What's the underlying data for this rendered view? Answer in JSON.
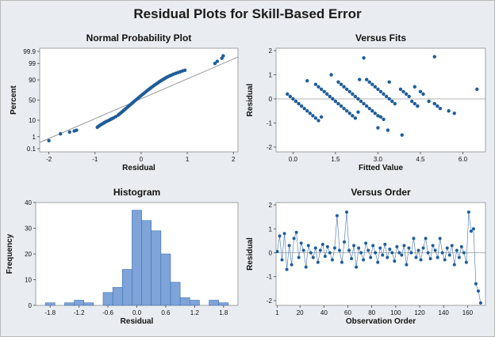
{
  "title": "Residual Plots for Skill-Based Error",
  "colors": {
    "marker": "#1f5d99",
    "bar": "#7ea4d9",
    "bar_edge": "#3f6fae",
    "ref_line": "#9a9a9a",
    "panel_bg": "#ffffff"
  },
  "chart_data": [
    {
      "type": "scatter",
      "title": "Normal Probability Plot",
      "xlabel": "Residual",
      "ylabel": "Percent",
      "xlim": [
        -2.2,
        2.1
      ],
      "xticks": [
        -2,
        -1,
        0,
        1,
        2
      ],
      "y_scale": "normal-probability",
      "yticks": [
        0.1,
        1,
        10,
        50,
        90,
        99,
        99.9
      ],
      "yticklabels": [
        "0.1",
        "1",
        "10",
        "50",
        "90",
        "99",
        "99.9"
      ],
      "reference_line": true,
      "x": [
        -2.0,
        -1.75,
        -1.55,
        -1.45,
        -1.4,
        -0.95,
        -0.93,
        -0.9,
        -0.88,
        -0.85,
        -0.82,
        -0.8,
        -0.77,
        -0.74,
        -0.7,
        -0.67,
        -0.64,
        -0.6,
        -0.55,
        -0.5,
        -0.47,
        -0.44,
        -0.41,
        -0.38,
        -0.35,
        -0.32,
        -0.29,
        -0.26,
        -0.23,
        -0.2,
        -0.17,
        -0.14,
        -0.11,
        -0.08,
        -0.05,
        -0.02,
        0.01,
        0.04,
        0.07,
        0.1,
        0.13,
        0.16,
        0.19,
        0.22,
        0.25,
        0.28,
        0.31,
        0.34,
        0.37,
        0.4,
        0.43,
        0.46,
        0.49,
        0.52,
        0.55,
        0.58,
        0.62,
        0.66,
        0.7,
        0.75,
        0.8,
        0.85,
        0.9,
        0.95,
        1.6,
        1.65,
        1.75,
        1.78
      ],
      "y": [
        0.5,
        1.6,
        2.1,
        2.5,
        2.8,
        4.2,
        4.7,
        5.2,
        5.8,
        6.4,
        7.0,
        7.6,
        8.3,
        9.0,
        9.8,
        10.7,
        11.7,
        12.8,
        14.6,
        16.9,
        18.8,
        20.8,
        23.0,
        25.3,
        27.8,
        30.4,
        33.1,
        35.9,
        38.8,
        41.7,
        44.7,
        47.6,
        50.6,
        53.5,
        56.4,
        59.3,
        62.1,
        64.8,
        67.4,
        69.9,
        72.3,
        74.6,
        76.7,
        78.7,
        80.6,
        82.3,
        83.9,
        85.3,
        86.6,
        87.9,
        89.0,
        90.0,
        90.9,
        91.7,
        92.5,
        93.1,
        93.8,
        94.4,
        95.0,
        95.5,
        96.0,
        96.4,
        96.8,
        97.1,
        99.0,
        99.3,
        99.6,
        99.75
      ]
    },
    {
      "type": "scatter",
      "title": "Versus Fits",
      "xlabel": "Fitted Value",
      "ylabel": "Residual",
      "xlim": [
        -0.6,
        6.8
      ],
      "ylim": [
        -2.2,
        2.1
      ],
      "xticks": [
        0.0,
        1.5,
        3.0,
        4.5,
        6.0
      ],
      "xticklabels": [
        "0.0",
        "1.5",
        "3.0",
        "4.5",
        "6.0"
      ],
      "yticks": [
        -2,
        -1,
        0,
        1,
        2
      ],
      "reference_line_y": 0,
      "x": [
        -0.2,
        -0.1,
        0.0,
        0.1,
        0.2,
        0.3,
        0.4,
        0.5,
        0.6,
        0.7,
        0.8,
        0.9,
        1.0,
        0.8,
        0.9,
        1.0,
        1.1,
        1.2,
        1.3,
        1.4,
        1.5,
        1.6,
        1.7,
        1.8,
        1.9,
        2.0,
        2.1,
        2.2,
        2.3,
        0.5,
        1.6,
        1.7,
        1.8,
        1.9,
        2.0,
        2.1,
        2.2,
        2.3,
        2.4,
        2.5,
        2.6,
        2.7,
        2.8,
        2.9,
        3.0,
        3.1,
        3.2,
        2.6,
        2.7,
        2.8,
        2.9,
        3.0,
        3.1,
        3.2,
        3.3,
        3.4,
        3.5,
        3.6,
        3.8,
        3.9,
        4.0,
        4.1,
        4.2,
        4.3,
        4.4,
        4.5,
        4.6,
        4.8,
        5.0,
        5.1,
        5.2,
        5.5,
        5.7,
        6.5,
        1.35,
        2.35,
        2.5,
        3.4,
        4.3,
        3.85,
        5.0,
        3.0,
        3.35
      ],
      "y": [
        0.2,
        0.1,
        0.0,
        -0.1,
        -0.2,
        -0.3,
        -0.4,
        -0.5,
        -0.6,
        -0.7,
        -0.8,
        -0.9,
        -0.75,
        0.6,
        0.5,
        0.4,
        0.3,
        0.2,
        0.1,
        0.0,
        -0.1,
        -0.2,
        -0.3,
        -0.4,
        -0.5,
        -0.6,
        -0.7,
        -0.8,
        -0.55,
        0.75,
        0.7,
        0.6,
        0.5,
        0.4,
        0.3,
        0.2,
        0.1,
        0.0,
        -0.1,
        -0.2,
        -0.3,
        -0.4,
        -0.5,
        -0.6,
        -0.7,
        -0.75,
        -0.85,
        0.8,
        0.7,
        0.6,
        0.5,
        0.4,
        0.3,
        0.2,
        0.1,
        0.0,
        -0.1,
        -0.2,
        0.4,
        0.3,
        0.2,
        0.1,
        -0.1,
        -0.2,
        -0.3,
        0.3,
        0.2,
        -0.1,
        -0.2,
        -0.3,
        -0.4,
        -0.5,
        -0.6,
        0.4,
        1.0,
        0.8,
        1.7,
        0.7,
        0.5,
        -1.5,
        1.75,
        -1.2,
        -1.3
      ]
    },
    {
      "type": "bar",
      "title": "Histogram",
      "xlabel": "Residual",
      "ylabel": "Frequency",
      "ylim": [
        0,
        40
      ],
      "yticks": [
        0,
        10,
        20,
        30,
        40
      ],
      "xticks": [
        -1.8,
        -1.2,
        -0.6,
        0.0,
        0.6,
        1.2,
        1.8
      ],
      "xticklabels": [
        "-1.8",
        "-1.2",
        "-0.6",
        "0.0",
        "0.6",
        "1.2",
        "1.8"
      ],
      "bin_width": 0.2,
      "bin_centers": [
        -2.0,
        -1.8,
        -1.6,
        -1.4,
        -1.2,
        -1.0,
        -0.8,
        -0.6,
        -0.4,
        -0.2,
        0.0,
        0.2,
        0.4,
        0.6,
        0.8,
        1.0,
        1.2,
        1.4,
        1.6,
        1.8,
        2.0
      ],
      "values": [
        0,
        1,
        0,
        1,
        2,
        1,
        0,
        5,
        7,
        14,
        37,
        33,
        29,
        20,
        9,
        3,
        2,
        0,
        2,
        1,
        0
      ]
    },
    {
      "type": "line",
      "title": "Versus Order",
      "xlabel": "Observation Order",
      "ylabel": "Residual",
      "xlim": [
        0,
        175
      ],
      "ylim": [
        -2.2,
        2.1
      ],
      "xticks": [
        1,
        20,
        40,
        60,
        80,
        100,
        120,
        140,
        160
      ],
      "yticks": [
        -2,
        -1,
        0,
        1,
        2
      ],
      "reference_line_y": 0,
      "x": [
        1,
        3,
        5,
        7,
        9,
        11,
        13,
        15,
        17,
        19,
        21,
        23,
        25,
        27,
        29,
        31,
        33,
        35,
        37,
        39,
        41,
        43,
        45,
        47,
        49,
        51,
        53,
        55,
        57,
        59,
        61,
        63,
        65,
        67,
        69,
        71,
        73,
        75,
        77,
        79,
        81,
        83,
        85,
        87,
        89,
        91,
        93,
        95,
        97,
        99,
        101,
        103,
        105,
        107,
        109,
        111,
        113,
        115,
        117,
        119,
        121,
        123,
        125,
        127,
        129,
        131,
        133,
        135,
        137,
        139,
        141,
        143,
        145,
        147,
        149,
        151,
        153,
        155,
        157,
        159,
        161,
        163,
        165,
        167,
        169,
        171
      ],
      "y": [
        0.05,
        0.7,
        -0.3,
        0.8,
        -0.7,
        0.3,
        -0.5,
        0.6,
        0.85,
        -0.2,
        0.4,
        0.1,
        -0.6,
        0.3,
        0.0,
        -0.2,
        0.2,
        -0.4,
        0.1,
        0.35,
        -0.15,
        0.25,
        0.0,
        -0.3,
        0.2,
        1.55,
        0.1,
        -0.4,
        0.45,
        1.7,
        0.1,
        -0.25,
        0.3,
        -0.6,
        0.2,
        0.0,
        -0.3,
        0.4,
        0.1,
        -0.2,
        0.3,
        0.0,
        -0.4,
        0.2,
        -0.1,
        0.35,
        -0.2,
        0.15,
        0.0,
        -0.35,
        0.25,
        0.0,
        -0.1,
        0.3,
        -0.5,
        0.2,
        0.0,
        0.6,
        -0.2,
        0.1,
        -0.3,
        0.2,
        0.6,
        0.0,
        -0.25,
        0.3,
        0.1,
        -0.2,
        0.6,
        0.0,
        -0.3,
        0.2,
        -0.1,
        0.3,
        -0.5,
        0.1,
        -0.2,
        0.25,
        0.0,
        -0.4,
        1.7,
        0.9,
        1.0,
        -1.3,
        -1.6,
        -2.1
      ]
    }
  ]
}
